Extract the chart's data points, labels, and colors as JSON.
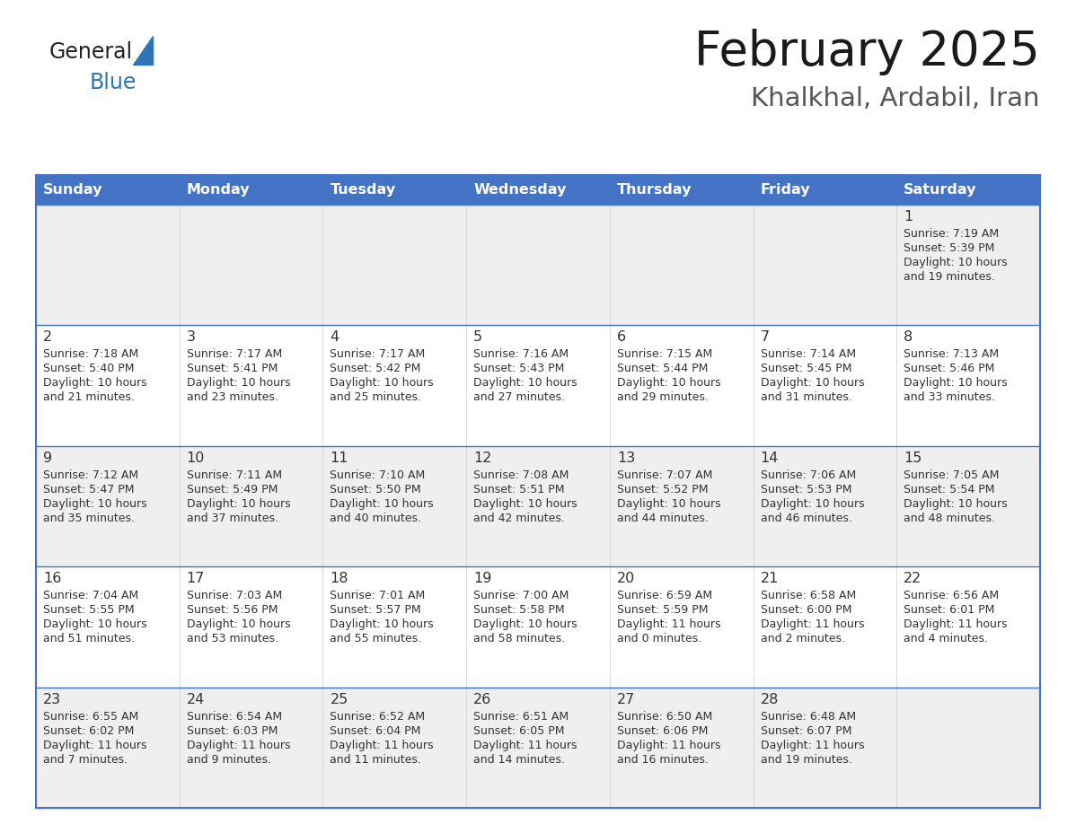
{
  "title": "February 2025",
  "subtitle": "Khalkhal, Ardabil, Iran",
  "header_bg": "#4472C4",
  "header_text": "#FFFFFF",
  "header_days": [
    "Sunday",
    "Monday",
    "Tuesday",
    "Wednesday",
    "Thursday",
    "Friday",
    "Saturday"
  ],
  "row_bg_odd": "#EFEFEF",
  "row_bg_even": "#FFFFFF",
  "grid_line_color": "#4472C4",
  "day_number_color": "#333333",
  "text_color": "#333333",
  "logo_general_color": "#222222",
  "logo_blue_color": "#2E75B6",
  "logo_triangle_color": "#2E75B6",
  "calendar_data": [
    {
      "day": 1,
      "col": 6,
      "row": 0,
      "sunrise": "7:19 AM",
      "sunset": "5:39 PM",
      "daylight_h": "10 hours",
      "daylight_m": "and 19 minutes."
    },
    {
      "day": 2,
      "col": 0,
      "row": 1,
      "sunrise": "7:18 AM",
      "sunset": "5:40 PM",
      "daylight_h": "10 hours",
      "daylight_m": "and 21 minutes."
    },
    {
      "day": 3,
      "col": 1,
      "row": 1,
      "sunrise": "7:17 AM",
      "sunset": "5:41 PM",
      "daylight_h": "10 hours",
      "daylight_m": "and 23 minutes."
    },
    {
      "day": 4,
      "col": 2,
      "row": 1,
      "sunrise": "7:17 AM",
      "sunset": "5:42 PM",
      "daylight_h": "10 hours",
      "daylight_m": "and 25 minutes."
    },
    {
      "day": 5,
      "col": 3,
      "row": 1,
      "sunrise": "7:16 AM",
      "sunset": "5:43 PM",
      "daylight_h": "10 hours",
      "daylight_m": "and 27 minutes."
    },
    {
      "day": 6,
      "col": 4,
      "row": 1,
      "sunrise": "7:15 AM",
      "sunset": "5:44 PM",
      "daylight_h": "10 hours",
      "daylight_m": "and 29 minutes."
    },
    {
      "day": 7,
      "col": 5,
      "row": 1,
      "sunrise": "7:14 AM",
      "sunset": "5:45 PM",
      "daylight_h": "10 hours",
      "daylight_m": "and 31 minutes."
    },
    {
      "day": 8,
      "col": 6,
      "row": 1,
      "sunrise": "7:13 AM",
      "sunset": "5:46 PM",
      "daylight_h": "10 hours",
      "daylight_m": "and 33 minutes."
    },
    {
      "day": 9,
      "col": 0,
      "row": 2,
      "sunrise": "7:12 AM",
      "sunset": "5:47 PM",
      "daylight_h": "10 hours",
      "daylight_m": "and 35 minutes."
    },
    {
      "day": 10,
      "col": 1,
      "row": 2,
      "sunrise": "7:11 AM",
      "sunset": "5:49 PM",
      "daylight_h": "10 hours",
      "daylight_m": "and 37 minutes."
    },
    {
      "day": 11,
      "col": 2,
      "row": 2,
      "sunrise": "7:10 AM",
      "sunset": "5:50 PM",
      "daylight_h": "10 hours",
      "daylight_m": "and 40 minutes."
    },
    {
      "day": 12,
      "col": 3,
      "row": 2,
      "sunrise": "7:08 AM",
      "sunset": "5:51 PM",
      "daylight_h": "10 hours",
      "daylight_m": "and 42 minutes."
    },
    {
      "day": 13,
      "col": 4,
      "row": 2,
      "sunrise": "7:07 AM",
      "sunset": "5:52 PM",
      "daylight_h": "10 hours",
      "daylight_m": "and 44 minutes."
    },
    {
      "day": 14,
      "col": 5,
      "row": 2,
      "sunrise": "7:06 AM",
      "sunset": "5:53 PM",
      "daylight_h": "10 hours",
      "daylight_m": "and 46 minutes."
    },
    {
      "day": 15,
      "col": 6,
      "row": 2,
      "sunrise": "7:05 AM",
      "sunset": "5:54 PM",
      "daylight_h": "10 hours",
      "daylight_m": "and 48 minutes."
    },
    {
      "day": 16,
      "col": 0,
      "row": 3,
      "sunrise": "7:04 AM",
      "sunset": "5:55 PM",
      "daylight_h": "10 hours",
      "daylight_m": "and 51 minutes."
    },
    {
      "day": 17,
      "col": 1,
      "row": 3,
      "sunrise": "7:03 AM",
      "sunset": "5:56 PM",
      "daylight_h": "10 hours",
      "daylight_m": "and 53 minutes."
    },
    {
      "day": 18,
      "col": 2,
      "row": 3,
      "sunrise": "7:01 AM",
      "sunset": "5:57 PM",
      "daylight_h": "10 hours",
      "daylight_m": "and 55 minutes."
    },
    {
      "day": 19,
      "col": 3,
      "row": 3,
      "sunrise": "7:00 AM",
      "sunset": "5:58 PM",
      "daylight_h": "10 hours",
      "daylight_m": "and 58 minutes."
    },
    {
      "day": 20,
      "col": 4,
      "row": 3,
      "sunrise": "6:59 AM",
      "sunset": "5:59 PM",
      "daylight_h": "11 hours",
      "daylight_m": "and 0 minutes."
    },
    {
      "day": 21,
      "col": 5,
      "row": 3,
      "sunrise": "6:58 AM",
      "sunset": "6:00 PM",
      "daylight_h": "11 hours",
      "daylight_m": "and 2 minutes."
    },
    {
      "day": 22,
      "col": 6,
      "row": 3,
      "sunrise": "6:56 AM",
      "sunset": "6:01 PM",
      "daylight_h": "11 hours",
      "daylight_m": "and 4 minutes."
    },
    {
      "day": 23,
      "col": 0,
      "row": 4,
      "sunrise": "6:55 AM",
      "sunset": "6:02 PM",
      "daylight_h": "11 hours",
      "daylight_m": "and 7 minutes."
    },
    {
      "day": 24,
      "col": 1,
      "row": 4,
      "sunrise": "6:54 AM",
      "sunset": "6:03 PM",
      "daylight_h": "11 hours",
      "daylight_m": "and 9 minutes."
    },
    {
      "day": 25,
      "col": 2,
      "row": 4,
      "sunrise": "6:52 AM",
      "sunset": "6:04 PM",
      "daylight_h": "11 hours",
      "daylight_m": "and 11 minutes."
    },
    {
      "day": 26,
      "col": 3,
      "row": 4,
      "sunrise": "6:51 AM",
      "sunset": "6:05 PM",
      "daylight_h": "11 hours",
      "daylight_m": "and 14 minutes."
    },
    {
      "day": 27,
      "col": 4,
      "row": 4,
      "sunrise": "6:50 AM",
      "sunset": "6:06 PM",
      "daylight_h": "11 hours",
      "daylight_m": "and 16 minutes."
    },
    {
      "day": 28,
      "col": 5,
      "row": 4,
      "sunrise": "6:48 AM",
      "sunset": "6:07 PM",
      "daylight_h": "11 hours",
      "daylight_m": "and 19 minutes."
    }
  ]
}
